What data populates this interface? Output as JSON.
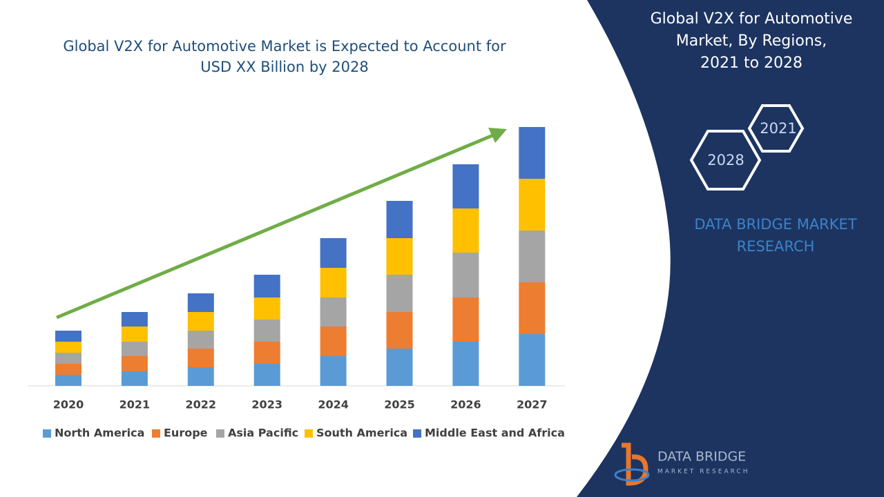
{
  "chart_data": {
    "type": "stacked-bar",
    "title": [
      "Global V2X for Automotive Market is Expected to Account for",
      "USD XX Billion by 2028"
    ],
    "categories": [
      "2020",
      "2021",
      "2022",
      "2023",
      "2024",
      "2025",
      "2026",
      "2027"
    ],
    "series": [
      {
        "name": "North America",
        "color": "#5b9bd5",
        "values": [
          16,
          21,
          27,
          32,
          43,
          54,
          64,
          75
        ]
      },
      {
        "name": "Europe",
        "color": "#ed7d31",
        "values": [
          16,
          22,
          27,
          32,
          43,
          53,
          64,
          75
        ]
      },
      {
        "name": "Asia Pacific",
        "color": "#a5a5a5",
        "values": [
          16,
          21,
          26,
          32,
          42,
          54,
          65,
          75
        ]
      },
      {
        "name": "South America",
        "color": "#ffc000",
        "values": [
          16,
          22,
          27,
          32,
          43,
          53,
          64,
          75
        ]
      },
      {
        "name": "Middle East and Africa",
        "color": "#4472c4",
        "values": [
          16,
          21,
          27,
          33,
          43,
          54,
          64,
          75
        ]
      }
    ],
    "legend": "bottom"
  },
  "panel": {
    "title": [
      "Global V2X for Automotive",
      "Market, By Regions,",
      "2021 to 2028"
    ],
    "hexagons": [
      "2021",
      "2028"
    ],
    "brand": [
      "DATA BRIDGE MARKET",
      "RESEARCH"
    ]
  },
  "logo": {
    "name": "DATA BRIDGE",
    "tagline": "MARKET RESEARCH"
  }
}
